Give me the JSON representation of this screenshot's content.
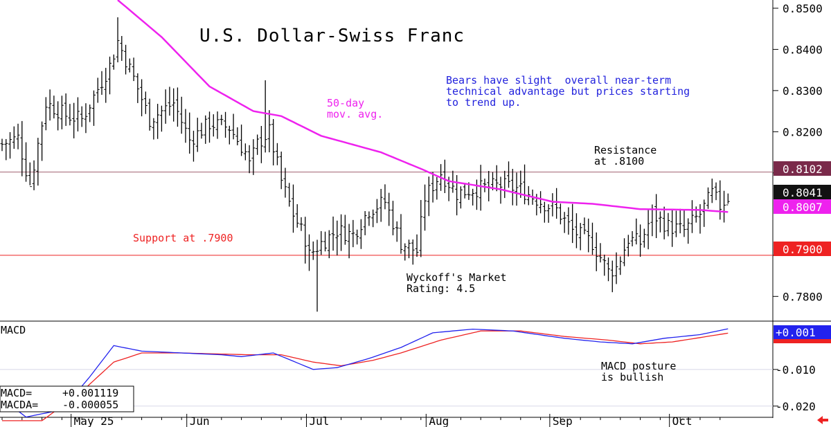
{
  "chart_data": {
    "type": "ohlc",
    "title": "U.S. Dollar-Swiss Franc",
    "price_axis": {
      "ylim": [
        0.774,
        0.852
      ],
      "ticks": [
        "0.8500",
        "0.8400",
        "0.8300",
        "0.8200",
        "0.7800"
      ],
      "tick_values": [
        0.85,
        0.84,
        0.83,
        0.82,
        0.78
      ]
    },
    "macd_axis": {
      "ylim": [
        -0.0225,
        0.003
      ],
      "ticks": [
        "-0.010",
        "-0.020"
      ],
      "tick_values": [
        -0.01,
        -0.02
      ]
    },
    "x_axis_labels": [
      {
        "label": "May 25",
        "bar": 18
      },
      {
        "label": "Jun",
        "bar": 47
      },
      {
        "label": "Jul",
        "bar": 77
      },
      {
        "label": "Aug",
        "bar": 107
      },
      {
        "label": "Sep",
        "bar": 138
      },
      {
        "label": "Oct",
        "bar": 168
      }
    ],
    "resistance": {
      "value": 0.8102,
      "label_line1": "Resistance",
      "label_line2": "at .8100",
      "badge": "0.8102",
      "color": "#a06070",
      "badge_color": "#7a2a4a"
    },
    "support": {
      "value": 0.79,
      "label": "Support at .7900",
      "badge": "0.7900",
      "color": "#ee2222"
    },
    "last_price": {
      "value": 0.8041,
      "badge": "0.8041"
    },
    "ma50": {
      "label_line1": "50-day",
      "label_line2": "mov. avg.",
      "badge": "0.8007",
      "last": 0.8007,
      "color": "#ee22ee",
      "keys": [
        [
          29,
          0.852
        ],
        [
          40,
          0.843
        ],
        [
          52,
          0.831
        ],
        [
          63,
          0.825
        ],
        [
          70,
          0.8238
        ],
        [
          80,
          0.819
        ],
        [
          95,
          0.815
        ],
        [
          105,
          0.811
        ],
        [
          112,
          0.808
        ],
        [
          125,
          0.806
        ],
        [
          138,
          0.803
        ],
        [
          148,
          0.8025
        ],
        [
          160,
          0.8012
        ],
        [
          175,
          0.801
        ],
        [
          182,
          0.8005
        ]
      ]
    },
    "annotations": {
      "commentary": [
        "Bears have slight  overall near-term",
        "technical advantage but prices starting",
        "to trend up."
      ],
      "rating": [
        "Wyckoff's Market",
        "Rating: 4.5"
      ],
      "macd_note": [
        "MACD posture",
        "is bullish"
      ]
    },
    "macd": {
      "label": "MACD",
      "badge": "+0.001",
      "readout_macd_label": "MACD=",
      "readout_macd_value": "+0.001119",
      "readout_macda_label": "MACDA=",
      "readout_macda_value": "-0.000055",
      "macd_color": "#2222ee",
      "signal_color": "#ee2222",
      "macd_keys": [
        [
          0,
          -0.018
        ],
        [
          6,
          -0.023
        ],
        [
          15,
          -0.021
        ],
        [
          22,
          -0.012
        ],
        [
          28,
          -0.0035
        ],
        [
          35,
          -0.005
        ],
        [
          45,
          -0.0055
        ],
        [
          55,
          -0.006
        ],
        [
          60,
          -0.0065
        ],
        [
          68,
          -0.0055
        ],
        [
          78,
          -0.01
        ],
        [
          84,
          -0.0095
        ],
        [
          92,
          -0.007
        ],
        [
          100,
          -0.004
        ],
        [
          108,
          0.0
        ],
        [
          118,
          0.001
        ],
        [
          128,
          0.0005
        ],
        [
          141,
          -0.0015
        ],
        [
          150,
          -0.0025
        ],
        [
          158,
          -0.003
        ],
        [
          166,
          -0.0015
        ],
        [
          175,
          -0.0005
        ],
        [
          182,
          0.0011
        ]
      ],
      "signal_keys": [
        [
          0,
          -0.024
        ],
        [
          10,
          -0.024
        ],
        [
          20,
          -0.016
        ],
        [
          28,
          -0.008
        ],
        [
          35,
          -0.0055
        ],
        [
          45,
          -0.0055
        ],
        [
          55,
          -0.0058
        ],
        [
          62,
          -0.006
        ],
        [
          70,
          -0.006
        ],
        [
          78,
          -0.008
        ],
        [
          85,
          -0.009
        ],
        [
          93,
          -0.0075
        ],
        [
          100,
          -0.0055
        ],
        [
          110,
          -0.002
        ],
        [
          120,
          0.0005
        ],
        [
          130,
          0.0005
        ],
        [
          141,
          -0.001
        ],
        [
          152,
          -0.002
        ],
        [
          160,
          -0.003
        ],
        [
          168,
          -0.0025
        ],
        [
          182,
          -0.0001
        ]
      ]
    },
    "ohlc_keys": [
      [
        0,
        0.817
      ],
      [
        4,
        0.8185
      ],
      [
        7,
        0.807
      ],
      [
        11,
        0.827
      ],
      [
        16,
        0.824
      ],
      [
        20,
        0.823
      ],
      [
        27,
        0.836
      ],
      [
        29,
        0.842
      ],
      [
        33,
        0.833
      ],
      [
        37,
        0.823
      ],
      [
        43,
        0.827
      ],
      [
        47,
        0.818
      ],
      [
        52,
        0.822
      ],
      [
        57,
        0.821
      ],
      [
        61,
        0.815
      ],
      [
        62,
        0.812
      ],
      [
        64,
        0.817
      ],
      [
        67,
        0.82
      ],
      [
        70,
        0.808
      ],
      [
        73,
        0.8
      ],
      [
        76,
        0.794
      ],
      [
        77,
        0.79
      ],
      [
        80,
        0.793
      ],
      [
        84,
        0.796
      ],
      [
        88,
        0.795
      ],
      [
        92,
        0.801
      ],
      [
        96,
        0.803
      ],
      [
        100,
        0.793
      ],
      [
        104,
        0.791
      ],
      [
        106,
        0.804
      ],
      [
        110,
        0.81
      ],
      [
        114,
        0.805
      ],
      [
        118,
        0.806
      ],
      [
        125,
        0.807
      ],
      [
        130,
        0.806
      ],
      [
        135,
        0.803
      ],
      [
        139,
        0.801
      ],
      [
        143,
        0.796
      ],
      [
        148,
        0.793
      ],
      [
        152,
        0.786
      ],
      [
        154,
        0.787
      ],
      [
        157,
        0.794
      ],
      [
        160,
        0.793
      ],
      [
        163,
        0.8
      ],
      [
        167,
        0.797
      ],
      [
        171,
        0.796
      ],
      [
        175,
        0.8
      ],
      [
        178,
        0.805
      ],
      [
        180,
        0.802
      ],
      [
        182,
        0.8041
      ]
    ]
  }
}
